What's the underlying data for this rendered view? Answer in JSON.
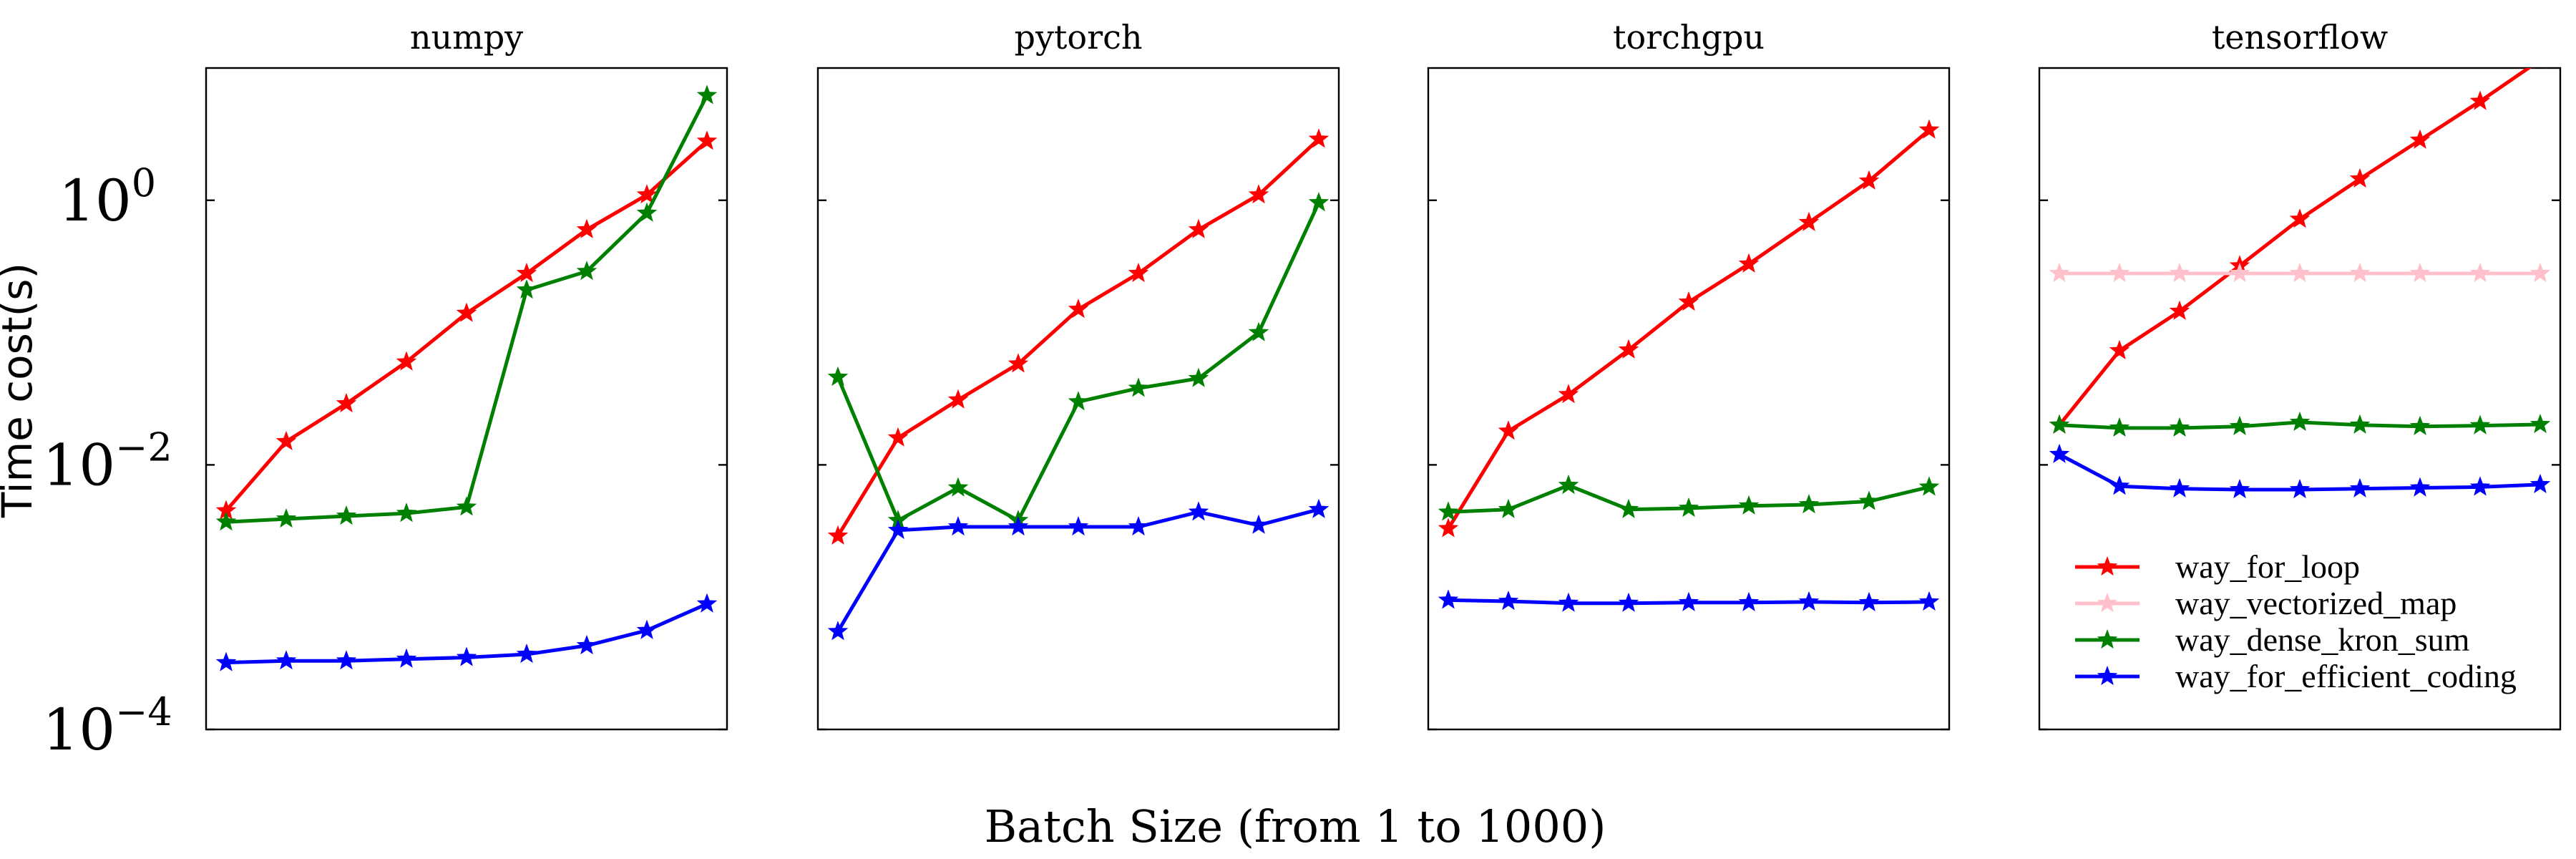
{
  "chart_data": {
    "type": "line",
    "ylabel": "Time cost(s)",
    "xlabel": "Batch Size (from 1 to 1000)",
    "yscale": "log",
    "ylim": [
      0.0001,
      10
    ],
    "yticks": [
      {
        "base": "10",
        "exp": "0"
      },
      {
        "base": "10",
        "exp": "−2"
      },
      {
        "base": "10",
        "exp": "−4"
      }
    ],
    "x": [
      1,
      2,
      3,
      4,
      5,
      6,
      7,
      8,
      9
    ],
    "grid": false,
    "legend": {
      "location": "lower-right of the last panel",
      "entries": [
        {
          "name": "way_for_loop",
          "color": "#ff0000"
        },
        {
          "name": "way_vectorized_map",
          "color": "#ffc0cb"
        },
        {
          "name": "way_dense_kron_sum",
          "color": "#008000"
        },
        {
          "name": "way_for_efficient_coding",
          "color": "#0000ff"
        }
      ]
    },
    "panels": [
      {
        "title": "numpy",
        "series": [
          {
            "name": "way_for_loop",
            "color": "#ff0000",
            "values": [
              0.0045,
              0.015,
              0.029,
              0.06,
              0.14,
              0.28,
              0.6,
              1.1,
              2.8
            ]
          },
          {
            "name": "way_dense_kron_sum",
            "color": "#008000",
            "values": [
              0.0037,
              0.0039,
              0.0041,
              0.0043,
              0.0048,
              0.21,
              0.29,
              0.8,
              6.2
            ]
          },
          {
            "name": "way_for_efficient_coding",
            "color": "#0000ff",
            "values": [
              0.00032,
              0.00033,
              0.00033,
              0.00034,
              0.00035,
              0.00037,
              0.00043,
              0.00056,
              0.00089
            ]
          }
        ]
      },
      {
        "title": "pytorch",
        "series": [
          {
            "name": "way_for_loop",
            "color": "#ff0000",
            "values": [
              0.0029,
              0.016,
              0.031,
              0.058,
              0.15,
              0.28,
              0.6,
              1.1,
              2.9
            ]
          },
          {
            "name": "way_dense_kron_sum",
            "color": "#008000",
            "values": [
              0.046,
              0.0038,
              0.0067,
              0.0038,
              0.03,
              0.038,
              0.045,
              0.1,
              0.96
            ]
          },
          {
            "name": "way_for_efficient_coding",
            "color": "#0000ff",
            "values": [
              0.00055,
              0.0032,
              0.0034,
              0.0034,
              0.0034,
              0.0034,
              0.0044,
              0.0035,
              0.0046
            ]
          }
        ]
      },
      {
        "title": "torchgpu",
        "series": [
          {
            "name": "way_for_loop",
            "color": "#ff0000",
            "values": [
              0.0033,
              0.018,
              0.034,
              0.074,
              0.17,
              0.33,
              0.68,
              1.4,
              3.4
            ]
          },
          {
            "name": "way_dense_kron_sum",
            "color": "#008000",
            "values": [
              0.0044,
              0.0046,
              0.007,
              0.0046,
              0.0047,
              0.0049,
              0.005,
              0.0053,
              0.0068
            ]
          },
          {
            "name": "way_for_efficient_coding",
            "color": "#0000ff",
            "values": [
              0.00095,
              0.00093,
              0.0009,
              0.0009,
              0.00091,
              0.00091,
              0.00092,
              0.00091,
              0.00092
            ]
          }
        ]
      },
      {
        "title": "tensorflow",
        "series": [
          {
            "name": "way_for_loop",
            "color": "#ff0000",
            "values": [
              0.02,
              0.073,
              0.145,
              0.32,
              0.72,
              1.45,
              2.85,
              5.6,
              11.5
            ]
          },
          {
            "name": "way_vectorized_map",
            "color": "#ffc0cb",
            "values": [
              0.28,
              0.28,
              0.28,
              0.28,
              0.28,
              0.28,
              0.28,
              0.28,
              0.28
            ]
          },
          {
            "name": "way_dense_kron_sum",
            "color": "#008000",
            "values": [
              0.02,
              0.019,
              0.019,
              0.0195,
              0.021,
              0.02,
              0.0195,
              0.0198,
              0.0202
            ]
          },
          {
            "name": "way_for_efficient_coding",
            "color": "#0000ff",
            "values": [
              0.012,
              0.0069,
              0.0066,
              0.0065,
              0.0065,
              0.0066,
              0.0067,
              0.0068,
              0.0071
            ]
          }
        ]
      }
    ]
  }
}
